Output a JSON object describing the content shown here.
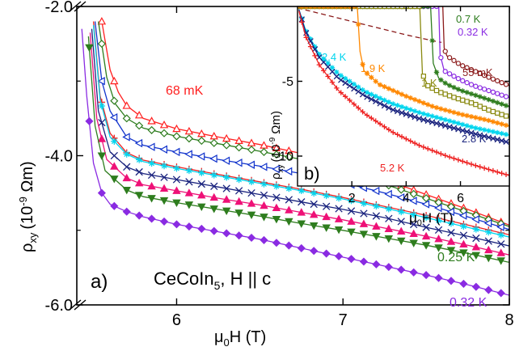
{
  "chart_data": [
    {
      "type": "line",
      "panel_label": "a)",
      "xlabel": {
        "main": "μ",
        "sub": "0",
        "rest": "H (T)"
      },
      "ylabel": {
        "rho": "ρ",
        "sub": "xy",
        "pre": "(10",
        "sup": "-9",
        "post": " Ωm)"
      },
      "xlim": [
        5.4,
        8.0
      ],
      "ylim": [
        -6.0,
        -2.0
      ],
      "xticks": [
        {
          "v": 6,
          "label": "6"
        },
        {
          "v": 7,
          "label": "7"
        },
        {
          "v": 8,
          "label": "8"
        }
      ],
      "yticks": [
        {
          "v": -2,
          "label": "-2.0"
        },
        {
          "v": -4,
          "label": "-4.0"
        },
        {
          "v": -6,
          "label": "-6.0"
        }
      ],
      "minor_y": [
        -3,
        -5
      ],
      "annotation": {
        "pre": "CeCoIn",
        "sub": "5",
        "post": ", H || c"
      },
      "series": [
        {
          "label": "68 mK",
          "color": "#ff2020",
          "marker": "tri-up-open",
          "pts": [
            [
              5.55,
              -2.2
            ],
            [
              5.6,
              -2.85
            ],
            [
              5.65,
              -3.15
            ],
            [
              5.7,
              -3.33
            ],
            [
              5.8,
              -3.5
            ],
            [
              6.0,
              -3.64
            ],
            [
              6.25,
              -3.75
            ],
            [
              6.5,
              -3.85
            ],
            [
              6.75,
              -3.97
            ],
            [
              7.0,
              -4.12
            ],
            [
              7.25,
              -4.32
            ],
            [
              7.5,
              -4.52
            ],
            [
              7.75,
              -4.72
            ],
            [
              8.0,
              -4.93
            ]
          ]
        },
        {
          "label": "",
          "color": "#2e7d1e",
          "marker": "diamond-open",
          "pts": [
            [
              5.53,
              -2.2
            ],
            [
              5.58,
              -2.95
            ],
            [
              5.63,
              -3.3
            ],
            [
              5.7,
              -3.5
            ],
            [
              5.8,
              -3.63
            ],
            [
              6.0,
              -3.74
            ],
            [
              6.25,
              -3.84
            ],
            [
              6.5,
              -3.94
            ],
            [
              6.75,
              -4.05
            ],
            [
              7.0,
              -4.2
            ],
            [
              7.25,
              -4.38
            ],
            [
              7.5,
              -4.57
            ],
            [
              7.75,
              -4.76
            ],
            [
              8.0,
              -4.95
            ]
          ]
        },
        {
          "label": "",
          "color": "#1133cc",
          "marker": "tri-left-open",
          "pts": [
            [
              5.51,
              -2.2
            ],
            [
              5.55,
              -3.0
            ],
            [
              5.6,
              -3.4
            ],
            [
              5.7,
              -3.75
            ],
            [
              5.8,
              -3.86
            ],
            [
              6.0,
              -3.95
            ],
            [
              6.25,
              -4.05
            ],
            [
              6.5,
              -4.14
            ],
            [
              6.75,
              -4.24
            ],
            [
              7.0,
              -4.36
            ],
            [
              7.25,
              -4.5
            ],
            [
              7.5,
              -4.65
            ],
            [
              7.75,
              -4.82
            ],
            [
              8.0,
              -4.99
            ]
          ]
        },
        {
          "label": "",
          "color": "#ee2222",
          "marker": "plus",
          "pts": [
            [
              5.5,
              -2.2
            ],
            [
              5.54,
              -3.2
            ],
            [
              5.6,
              -3.7
            ],
            [
              5.7,
              -3.96
            ],
            [
              5.8,
              -4.06
            ],
            [
              6.0,
              -4.15
            ],
            [
              6.25,
              -4.25
            ],
            [
              6.5,
              -4.35
            ],
            [
              6.75,
              -4.45
            ],
            [
              7.0,
              -4.56
            ],
            [
              7.25,
              -4.68
            ],
            [
              7.5,
              -4.8
            ],
            [
              7.75,
              -4.93
            ],
            [
              8.0,
              -5.06
            ]
          ]
        },
        {
          "label": "",
          "color": "#00d5ee",
          "marker": "star",
          "pts": [
            [
              5.5,
              -2.25
            ],
            [
              5.54,
              -3.25
            ],
            [
              5.6,
              -3.75
            ],
            [
              5.7,
              -3.98
            ],
            [
              5.8,
              -4.08
            ],
            [
              6.0,
              -4.17
            ],
            [
              6.25,
              -4.27
            ],
            [
              6.5,
              -4.37
            ],
            [
              6.75,
              -4.47
            ],
            [
              7.0,
              -4.58
            ],
            [
              7.25,
              -4.7
            ],
            [
              7.5,
              -4.83
            ],
            [
              7.75,
              -4.96
            ],
            [
              8.0,
              -5.09
            ]
          ]
        },
        {
          "label": "",
          "color": "#1a237e",
          "marker": "x",
          "pts": [
            [
              5.49,
              -2.3
            ],
            [
              5.53,
              -3.4
            ],
            [
              5.6,
              -3.95
            ],
            [
              5.7,
              -4.15
            ],
            [
              5.8,
              -4.24
            ],
            [
              6.0,
              -4.32
            ],
            [
              6.25,
              -4.42
            ],
            [
              6.5,
              -4.52
            ],
            [
              6.75,
              -4.62
            ],
            [
              7.0,
              -4.72
            ],
            [
              7.25,
              -4.83
            ],
            [
              7.5,
              -4.96
            ],
            [
              7.75,
              -5.08
            ],
            [
              8.0,
              -5.21
            ]
          ]
        },
        {
          "label": "",
          "color": "#ee1177",
          "marker": "tri-up-filled",
          "pts": [
            [
              5.48,
              -2.35
            ],
            [
              5.52,
              -3.5
            ],
            [
              5.58,
              -4.05
            ],
            [
              5.7,
              -4.3
            ],
            [
              5.8,
              -4.39
            ],
            [
              6.0,
              -4.47
            ],
            [
              6.25,
              -4.57
            ],
            [
              6.5,
              -4.66
            ],
            [
              6.75,
              -4.76
            ],
            [
              7.0,
              -4.86
            ],
            [
              7.25,
              -4.97
            ],
            [
              7.5,
              -5.08
            ],
            [
              7.75,
              -5.2
            ],
            [
              8.0,
              -5.33
            ]
          ]
        },
        {
          "label": "0.25 K",
          "color": "#2e7d1e",
          "marker": "tri-down-filled",
          "pts": [
            [
              5.47,
              -2.4
            ],
            [
              5.51,
              -3.6
            ],
            [
              5.57,
              -4.2
            ],
            [
              5.7,
              -4.46
            ],
            [
              5.8,
              -4.55
            ],
            [
              6.0,
              -4.63
            ],
            [
              6.25,
              -4.72
            ],
            [
              6.5,
              -4.81
            ],
            [
              6.75,
              -4.91
            ],
            [
              7.0,
              -5.0
            ],
            [
              7.25,
              -5.1
            ],
            [
              7.5,
              -5.2
            ],
            [
              7.75,
              -5.31
            ],
            [
              8.0,
              -5.43
            ]
          ]
        },
        {
          "label": "0.32 K",
          "color": "#8a2be2",
          "marker": "diamond-filled",
          "pts": [
            [
              5.43,
              -2.3
            ],
            [
              5.46,
              -3.2
            ],
            [
              5.5,
              -4.1
            ],
            [
              5.55,
              -4.5
            ],
            [
              5.6,
              -4.65
            ],
            [
              5.7,
              -4.75
            ],
            [
              5.8,
              -4.82
            ],
            [
              6.0,
              -4.92
            ],
            [
              6.25,
              -5.02
            ],
            [
              6.5,
              -5.12
            ],
            [
              6.75,
              -5.24
            ],
            [
              7.0,
              -5.36
            ],
            [
              7.25,
              -5.48
            ],
            [
              7.5,
              -5.6
            ],
            [
              7.75,
              -5.73
            ],
            [
              8.0,
              -5.87
            ]
          ]
        }
      ]
    },
    {
      "type": "line",
      "panel_label": "b)",
      "xlabel": {
        "main": "μ",
        "sub": "0",
        "rest": "H (T)"
      },
      "ylabel": {
        "rho": "ρ",
        "sub": "xy",
        "pre": "(10",
        "sup": "-9",
        "post": " Ωm)"
      },
      "xlim": [
        0,
        7.8
      ],
      "ylim": [
        -12,
        0
      ],
      "xticks": [
        {
          "v": 2,
          "label": "2"
        },
        {
          "v": 4,
          "label": "4"
        },
        {
          "v": 6,
          "label": "6"
        }
      ],
      "yticks": [
        {
          "v": -5,
          "label": "-5"
        },
        {
          "v": -10,
          "label": "-10"
        }
      ],
      "series": [
        {
          "label": "55 mK",
          "color": "#8b1a1a",
          "marker": "none",
          "dashed": true,
          "pts": [
            [
              0,
              -0.1
            ],
            [
              2,
              -1.0
            ],
            [
              4,
              -1.9
            ],
            [
              5.0,
              -2.3
            ],
            [
              5.3,
              -2.4
            ]
          ]
        },
        {
          "label": "55 mK",
          "color": "#8b1a1a",
          "marker": "circle-open",
          "pts": [
            [
              5.3,
              0
            ],
            [
              5.35,
              0
            ],
            [
              5.4,
              -2.8
            ],
            [
              5.5,
              -3.3
            ],
            [
              6.0,
              -3.9
            ],
            [
              6.5,
              -4.3
            ],
            [
              7.0,
              -4.7
            ],
            [
              7.8,
              -5.3
            ]
          ]
        },
        {
          "label": "0.32 K",
          "color": "#8a2be2",
          "marker": "circle-open",
          "pts": [
            [
              0,
              0
            ],
            [
              5.2,
              0
            ],
            [
              5.25,
              -3.2
            ],
            [
              5.4,
              -4.3
            ],
            [
              6.0,
              -4.9
            ],
            [
              6.5,
              -5.3
            ],
            [
              7.0,
              -5.6
            ],
            [
              7.8,
              -6.1
            ]
          ]
        },
        {
          "label": "0.7 K",
          "color": "#2e7d1e",
          "marker": "star",
          "pts": [
            [
              0,
              0
            ],
            [
              4.9,
              0
            ],
            [
              5.0,
              -3.8
            ],
            [
              5.2,
              -4.8
            ],
            [
              5.5,
              -5.2
            ],
            [
              6.0,
              -5.6
            ],
            [
              6.5,
              -5.9
            ],
            [
              7.0,
              -6.2
            ],
            [
              7.8,
              -6.7
            ]
          ]
        },
        {
          "label": "1 K",
          "color": "#8a8a10",
          "marker": "square-open",
          "pts": [
            [
              0,
              0
            ],
            [
              4.5,
              0
            ],
            [
              4.6,
              -4.5
            ],
            [
              4.8,
              -5.3
            ],
            [
              5.2,
              -5.7
            ],
            [
              5.8,
              -6.1
            ],
            [
              6.5,
              -6.5
            ],
            [
              7.0,
              -6.9
            ],
            [
              7.8,
              -7.4
            ]
          ]
        },
        {
          "label": "1.9 K",
          "color": "#ff8800",
          "marker": "star",
          "pts": [
            [
              0,
              0
            ],
            [
              2.2,
              0
            ],
            [
              2.3,
              -3.0
            ],
            [
              2.45,
              -4.3
            ],
            [
              3.0,
              -5.2
            ],
            [
              4.0,
              -6.0
            ],
            [
              5.0,
              -6.7
            ],
            [
              6.0,
              -7.2
            ],
            [
              7.0,
              -7.6
            ],
            [
              7.8,
              -8.0
            ]
          ]
        },
        {
          "label": "2.4 K",
          "color": "#00d5ee",
          "marker": "star",
          "pts": [
            [
              0.05,
              -0.2
            ],
            [
              0.3,
              -1.6
            ],
            [
              0.8,
              -3.2
            ],
            [
              1.5,
              -4.5
            ],
            [
              2.5,
              -5.7
            ],
            [
              3.5,
              -6.5
            ],
            [
              4.5,
              -7.1
            ],
            [
              5.5,
              -7.6
            ],
            [
              6.5,
              -8.1
            ],
            [
              7.8,
              -8.6
            ]
          ]
        },
        {
          "label": "2.8 K",
          "color": "#1a237e",
          "marker": "x",
          "pts": [
            [
              0.05,
              -0.2
            ],
            [
              0.3,
              -1.7
            ],
            [
              0.8,
              -3.4
            ],
            [
              1.5,
              -4.8
            ],
            [
              2.5,
              -6.0
            ],
            [
              3.5,
              -6.9
            ],
            [
              4.5,
              -7.5
            ],
            [
              5.5,
              -8.0
            ],
            [
              6.5,
              -8.5
            ],
            [
              7.8,
              -9.1
            ]
          ]
        },
        {
          "label": "5.2 K",
          "color": "#ee2222",
          "marker": "plus",
          "pts": [
            [
              0.05,
              -0.3
            ],
            [
              0.3,
              -2.0
            ],
            [
              0.8,
              -3.9
            ],
            [
              1.5,
              -5.6
            ],
            [
              2.5,
              -7.2
            ],
            [
              3.5,
              -8.4
            ],
            [
              4.5,
              -9.3
            ],
            [
              5.5,
              -10.0
            ],
            [
              6.5,
              -10.6
            ],
            [
              7.8,
              -11.3
            ]
          ]
        }
      ],
      "labels": [
        {
          "text": "0.7 K",
          "color": "#2e7d1e"
        },
        {
          "text": "0.32 K",
          "color": "#8a2be2"
        },
        {
          "text": "55 mK",
          "color": "#8b1a1a"
        },
        {
          "text": "2.4 K",
          "color": "#00d5ee"
        },
        {
          "text": "1.9 K",
          "color": "#ff8800"
        },
        {
          "text": "1 K",
          "color": "#8a8a10"
        },
        {
          "text": "2.8 K",
          "color": "#1a237e"
        },
        {
          "text": "5.2 K",
          "color": "#ee2222"
        }
      ]
    }
  ]
}
